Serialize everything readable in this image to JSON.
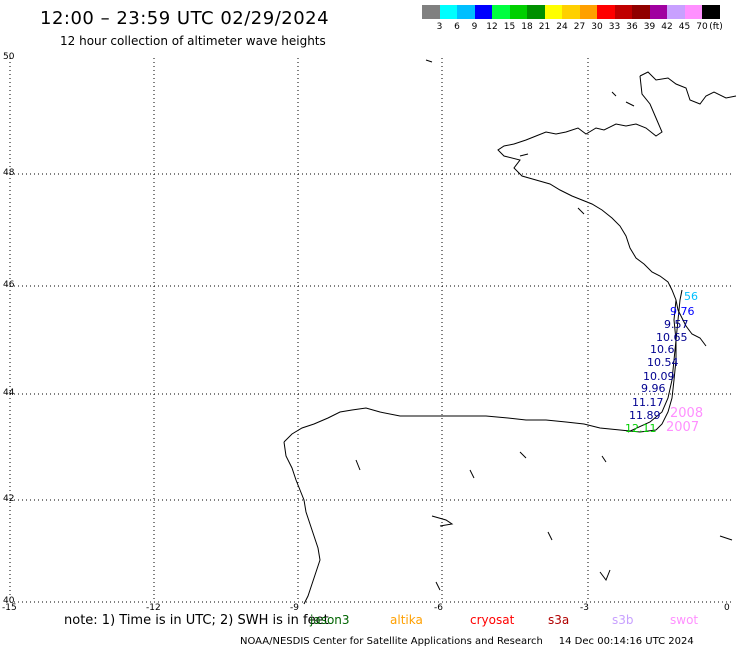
{
  "header": {
    "title": "12:00 – 23:59 UTC 02/29/2024",
    "subtitle": "12 hour collection of altimeter wave heights"
  },
  "legend": {
    "colors": [
      "#808080",
      "#00ffff",
      "#00bfff",
      "#0000ff",
      "#00ff40",
      "#00d000",
      "#009000",
      "#ffff00",
      "#ffd000",
      "#ffa000",
      "#ff0000",
      "#c00000",
      "#900000",
      "#a000a0",
      "#c8a0ff",
      "#ff90ff",
      "#000000"
    ],
    "labels": [
      "3",
      "6",
      "9",
      "12",
      "15",
      "18",
      "21",
      "24",
      "27",
      "30",
      "33",
      "36",
      "39",
      "42",
      "45",
      "70"
    ],
    "unit": "(ft)"
  },
  "map": {
    "lon_ticks": [
      "-15",
      "-12",
      "-9",
      "-6",
      "-3",
      "0"
    ],
    "lat_ticks": [
      "50",
      "48",
      "46",
      "44",
      "42",
      "40"
    ],
    "lon_range": [
      -15,
      0
    ],
    "lat_range": [
      40,
      50
    ]
  },
  "swh_points": [
    {
      "text": "56",
      "color": "#00bfff"
    },
    {
      "text": "9.76",
      "color": "#0000ff"
    },
    {
      "text": "9.57",
      "color": "#000090"
    },
    {
      "text": "10.65",
      "color": "#000090"
    },
    {
      "text": "10.6",
      "color": "#000090"
    },
    {
      "text": "10.54",
      "color": "#000090"
    },
    {
      "text": "10.09",
      "color": "#000090"
    },
    {
      "text": "9.96",
      "color": "#000090"
    },
    {
      "text": "11.17",
      "color": "#000090"
    },
    {
      "text": "11.89",
      "color": "#000090"
    },
    {
      "text": "12.11",
      "color": "#00d000"
    }
  ],
  "time_labels": [
    {
      "text": "2008",
      "color": "#ff90ff"
    },
    {
      "text": "2007",
      "color": "#ff90ff"
    }
  ],
  "note": {
    "text": "note: 1) Time is in UTC; 2) SWH is in feet"
  },
  "satellites": [
    {
      "name": "jason3",
      "color": "#006400"
    },
    {
      "name": "altika",
      "color": "#ffa000"
    },
    {
      "name": "cryosat",
      "color": "#ff0000"
    },
    {
      "name": "s3a",
      "color": "#b00000"
    },
    {
      "name": "s3b",
      "color": "#c8a0ff"
    },
    {
      "name": "swot",
      "color": "#ff90ff"
    }
  ],
  "footer": {
    "credit": "NOAA/NESDIS Center for Satellite Applications and Research",
    "timestamp": "14 Dec 00:14:16 UTC 2024"
  }
}
